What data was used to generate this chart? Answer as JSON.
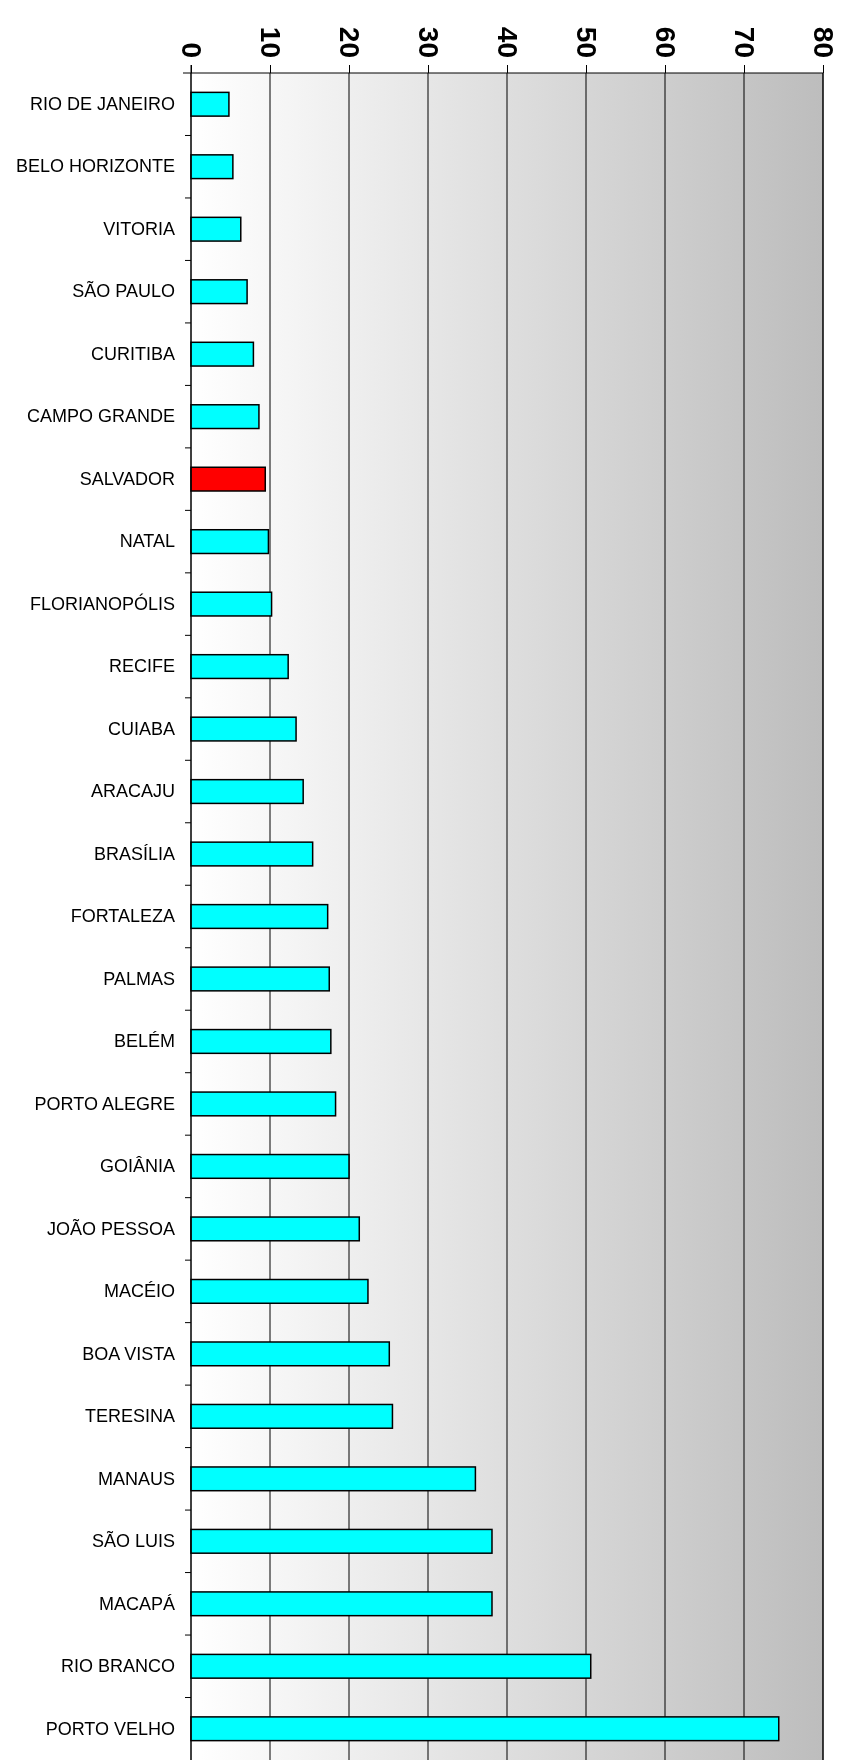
{
  "chart_data": {
    "type": "bar",
    "orientation": "horizontal",
    "categories": [
      "RIO DE JANEIRO",
      "BELO HORIZONTE",
      "VITORIA",
      "SÃO PAULO",
      "CURITIBA",
      "CAMPO GRANDE",
      "SALVADOR",
      "NATAL",
      "FLORIANOPÓLIS",
      "RECIFE",
      "CUIABA",
      "ARACAJU",
      "BRASÍLIA",
      "FORTALEZA",
      "PALMAS",
      "BELÉM",
      "PORTO ALEGRE",
      "GOIÂNIA",
      "JOÃO PESSOA",
      "MACÉIO",
      "BOA VISTA",
      "TERESINA",
      "MANAUS",
      "SÃO LUIS",
      "MACAPÁ",
      "RIO BRANCO",
      "PORTO VELHO"
    ],
    "values": [
      4.8,
      5.3,
      6.3,
      7.1,
      7.9,
      8.6,
      9.4,
      9.8,
      10.2,
      12.3,
      13.3,
      14.2,
      15.4,
      17.3,
      17.5,
      17.7,
      18.3,
      20.0,
      21.3,
      22.4,
      25.1,
      25.5,
      36.0,
      38.1,
      38.1,
      50.6,
      74.4
    ],
    "colors": [
      "#00ffff",
      "#00ffff",
      "#00ffff",
      "#00ffff",
      "#00ffff",
      "#00ffff",
      "#ff0000",
      "#00ffff",
      "#00ffff",
      "#00ffff",
      "#00ffff",
      "#00ffff",
      "#00ffff",
      "#00ffff",
      "#00ffff",
      "#00ffff",
      "#00ffff",
      "#00ffff",
      "#00ffff",
      "#00ffff",
      "#00ffff",
      "#00ffff",
      "#00ffff",
      "#00ffff",
      "#00ffff",
      "#00ffff",
      "#00ffff"
    ],
    "xlim": [
      0,
      80
    ],
    "xticks": [
      0,
      10,
      20,
      30,
      40,
      50,
      60,
      70,
      80
    ],
    "grid": "x"
  }
}
